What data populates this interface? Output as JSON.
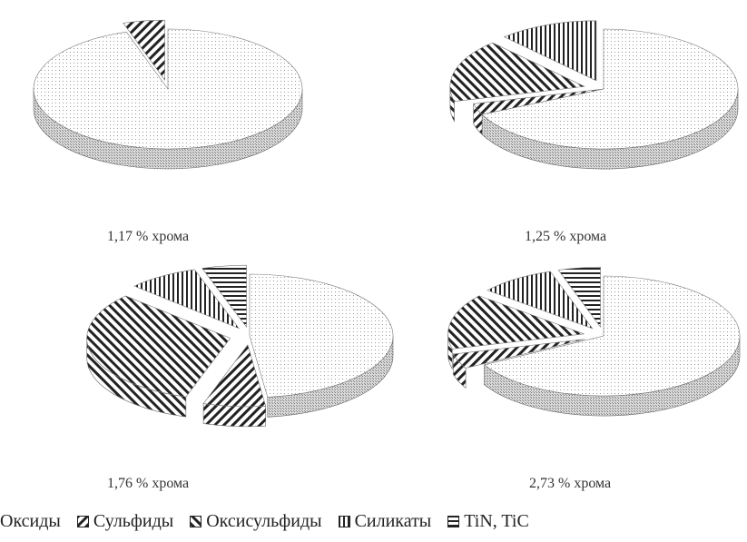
{
  "chart_data": [
    {
      "type": "pie",
      "title": "1,17 % хрома",
      "categories": [
        "Оксиды",
        "Сульфиды",
        "Оксисульфиды",
        "Силикаты",
        "TiN, TiC"
      ],
      "values": [
        95,
        5,
        0,
        0,
        0
      ],
      "exploded": [
        "Сульфиды"
      ]
    },
    {
      "type": "pie",
      "title": "1,25 % хрома",
      "categories": [
        "Оксиды",
        "Сульфиды",
        "Оксисульфиды",
        "Силикаты",
        "TiN, TiC"
      ],
      "values": [
        68,
        3,
        17,
        12,
        0
      ],
      "exploded": [
        "Оксисульфиды",
        "Силикаты"
      ]
    },
    {
      "type": "pie",
      "title": "1,76 % хрома",
      "categories": [
        "Оксиды",
        "Сульфиды",
        "Оксисульфиды",
        "Силикаты",
        "TiN, TiC"
      ],
      "values": [
        48,
        7,
        32,
        8,
        5
      ],
      "exploded": [
        "Сульфиды",
        "Оксисульфиды",
        "Силикаты",
        "TiN, TiC"
      ]
    },
    {
      "type": "pie",
      "title": "2,73 % хрома",
      "categories": [
        "Оксиды",
        "Сульфиды",
        "Оксисульфиды",
        "Силикаты",
        "TiN, TiC"
      ],
      "values": [
        67,
        4,
        15,
        9,
        5
      ],
      "exploded": [
        "Сульфиды",
        "Оксисульфиды",
        "Силикаты",
        "TiN, TiC"
      ]
    }
  ],
  "legend": [
    {
      "label": "Оксиды",
      "pattern": "dots"
    },
    {
      "label": "Сульфиды",
      "pattern": "hatch-back"
    },
    {
      "label": "Оксисульфиды",
      "pattern": "hatch-fwd"
    },
    {
      "label": "Силикаты",
      "pattern": "vlines"
    },
    {
      "label": "TiN, TiC",
      "pattern": "hlines"
    }
  ],
  "colors": {
    "ink": "#222222",
    "dots": "#9a9a9a",
    "side": "#8c8c8c",
    "background": "#ffffff"
  }
}
